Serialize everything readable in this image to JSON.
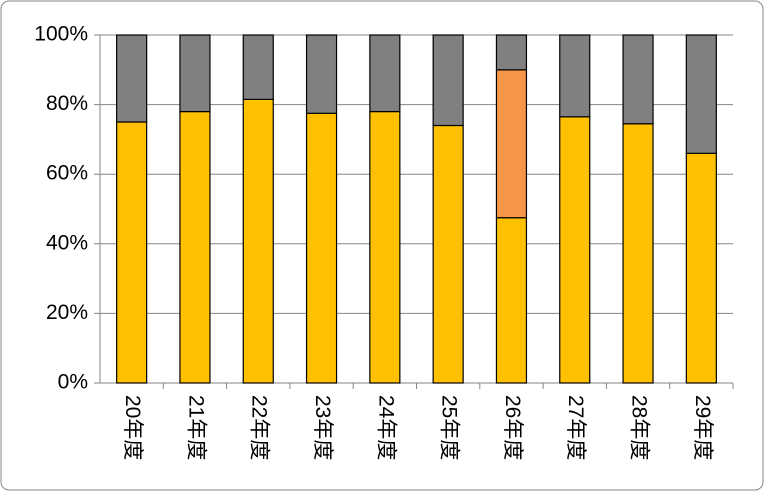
{
  "chart_data": {
    "type": "stacked-bar",
    "categories": [
      "20年度",
      "21年度",
      "22年度",
      "23年度",
      "24年度",
      "25年度",
      "26年度",
      "27年度",
      "28年度",
      "29年度"
    ],
    "series": [
      {
        "color": "#ffc000",
        "values": [
          75,
          78,
          81.5,
          77.5,
          78,
          74,
          47.5,
          76.5,
          74.5,
          66
        ]
      },
      {
        "color": "#f79646",
        "values": [
          null,
          null,
          null,
          null,
          null,
          null,
          42.5,
          null,
          null,
          null
        ]
      },
      {
        "color": "#808080",
        "values": [
          25,
          22,
          18.5,
          22.5,
          22,
          26,
          10,
          23.5,
          25.5,
          34
        ]
      }
    ],
    "ylim": [
      0,
      100
    ],
    "yticks": [
      {
        "value": 0,
        "label": "0%"
      },
      {
        "value": 20,
        "label": "20%"
      },
      {
        "value": 40,
        "label": "40%"
      },
      {
        "value": 60,
        "label": "60%"
      },
      {
        "value": 80,
        "label": "80%"
      },
      {
        "value": 100,
        "label": "100%"
      }
    ],
    "grid": true
  }
}
